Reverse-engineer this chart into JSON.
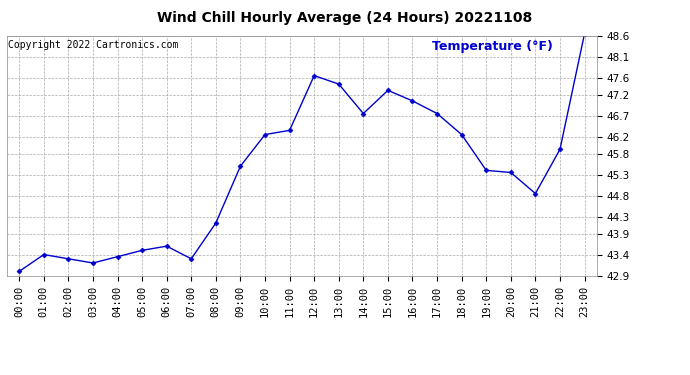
{
  "title": "Wind Chill Hourly Average (24 Hours) 20221108",
  "copyright_text": "Copyright 2022 Cartronics.com",
  "legend_label": "Temperature (°F)",
  "hours": [
    "00:00",
    "01:00",
    "02:00",
    "03:00",
    "04:00",
    "05:00",
    "06:00",
    "07:00",
    "08:00",
    "09:00",
    "10:00",
    "11:00",
    "12:00",
    "13:00",
    "14:00",
    "15:00",
    "16:00",
    "17:00",
    "18:00",
    "19:00",
    "20:00",
    "21:00",
    "22:00",
    "23:00"
  ],
  "values": [
    43.0,
    43.4,
    43.3,
    43.2,
    43.35,
    43.5,
    43.6,
    43.3,
    44.15,
    45.5,
    46.25,
    46.35,
    47.65,
    47.45,
    46.75,
    47.3,
    47.05,
    46.75,
    46.25,
    45.4,
    45.35,
    44.85,
    45.9,
    48.65
  ],
  "line_color": "#0000cc",
  "marker": "D",
  "marker_size": 2.5,
  "ylim_min": 42.9,
  "ylim_max": 48.6,
  "yticks": [
    42.9,
    43.4,
    43.9,
    44.3,
    44.8,
    45.3,
    45.8,
    46.2,
    46.7,
    47.2,
    47.6,
    48.1,
    48.6
  ],
  "grid_color": "#aaaaaa",
  "grid_linestyle": "--",
  "background_color": "#ffffff",
  "title_fontsize": 10,
  "copyright_fontsize": 7,
  "legend_fontsize": 9,
  "tick_fontsize": 7.5
}
